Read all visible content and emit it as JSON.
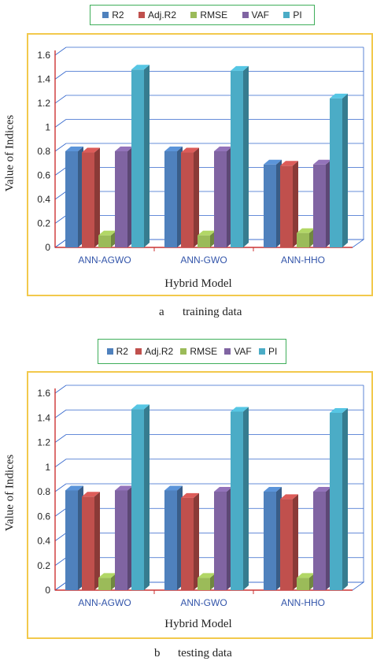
{
  "legend_colors": [
    "#4f81bd",
    "#c0504d",
    "#9bbb59",
    "#8064a2",
    "#4bacc6"
  ],
  "chart_data": [
    {
      "type": "bar",
      "caption_letter": "a",
      "caption_text": "training data",
      "xlabel": "Hybrid Model",
      "ylabel": "Value of Indices",
      "ylim": [
        0,
        1.6
      ],
      "yticks": [
        "0",
        "0.2",
        "0.4",
        "0.6",
        "0.8",
        "1",
        "1.2",
        "1.4",
        "1.6"
      ],
      "categories": [
        "ANN-AGWO",
        "ANN-GWO",
        "ANN-HHO"
      ],
      "legend_placement": "top",
      "grid": true,
      "series": [
        {
          "name": "R2",
          "values": [
            0.8,
            0.8,
            0.69
          ]
        },
        {
          "name": "Adj.R2",
          "values": [
            0.79,
            0.79,
            0.68
          ]
        },
        {
          "name": "RMSE",
          "values": [
            0.1,
            0.1,
            0.12
          ]
        },
        {
          "name": "VAF",
          "values": [
            0.8,
            0.8,
            0.69
          ]
        },
        {
          "name": "PI",
          "values": [
            1.48,
            1.47,
            1.24
          ]
        }
      ]
    },
    {
      "type": "bar",
      "caption_letter": "b",
      "caption_text": "testing data",
      "xlabel": "Hybrid Model",
      "ylabel": "Value of Indices",
      "ylim": [
        0,
        1.6
      ],
      "yticks": [
        "0",
        "0.2",
        "0.4",
        "0.6",
        "0.8",
        "1",
        "1.2",
        "1.4",
        "1.6"
      ],
      "categories": [
        "ANN-AGWO",
        "ANN-GWO",
        "ANN-HHO"
      ],
      "legend_placement": "top",
      "grid": true,
      "series": [
        {
          "name": "R2",
          "values": [
            0.81,
            0.81,
            0.8
          ]
        },
        {
          "name": "Adj.R2",
          "values": [
            0.76,
            0.75,
            0.74
          ]
        },
        {
          "name": "RMSE",
          "values": [
            0.1,
            0.1,
            0.1
          ]
        },
        {
          "name": "VAF",
          "values": [
            0.81,
            0.8,
            0.8
          ]
        },
        {
          "name": "PI",
          "values": [
            1.47,
            1.45,
            1.44
          ]
        }
      ]
    }
  ]
}
